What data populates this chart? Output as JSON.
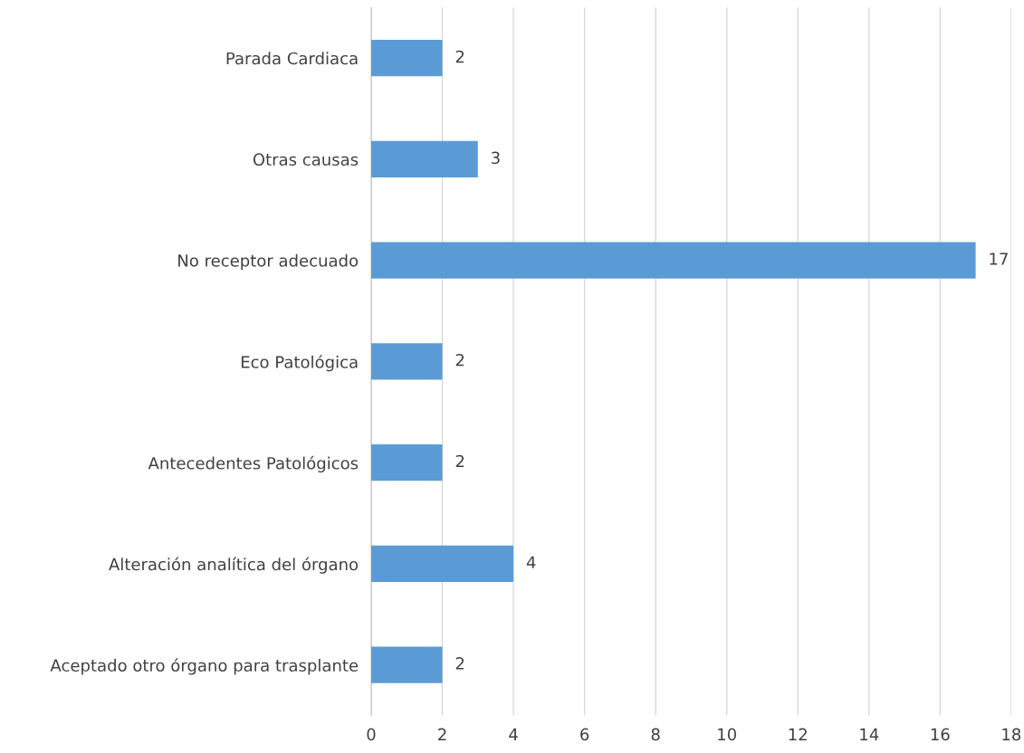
{
  "chart_data": {
    "type": "bar",
    "orientation": "horizontal",
    "categories": [
      "Parada Cardiaca",
      "Otras causas",
      "No receptor adecuado",
      "Eco Patológica",
      "Antecedentes Patológicos",
      "Alteración analítica del órgano",
      "Aceptado otro órgano para trasplante"
    ],
    "values": [
      2,
      3,
      17,
      2,
      2,
      4,
      2
    ],
    "color": "#5b9bd5",
    "xlim": [
      0,
      18
    ],
    "xticks": [
      0,
      2,
      4,
      6,
      8,
      10,
      12,
      14,
      16,
      18
    ],
    "grid": "x",
    "data_labels": true
  }
}
